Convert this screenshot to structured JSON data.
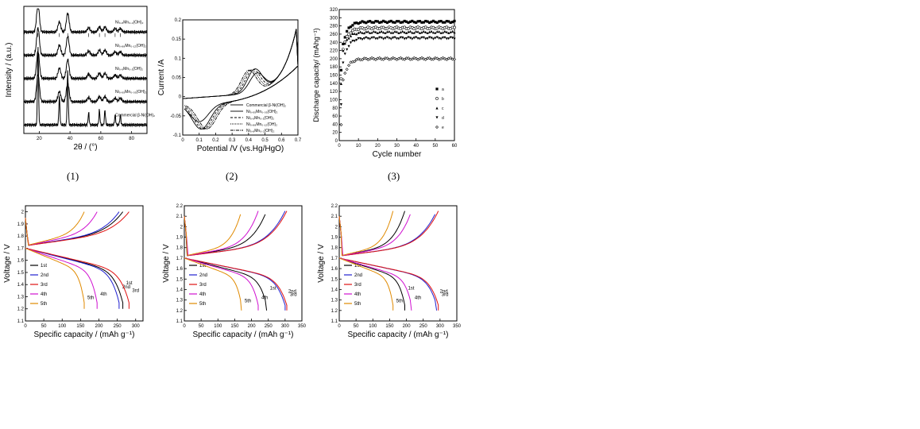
{
  "captions": [
    "(1)",
    "(2)",
    "(3)"
  ],
  "chart_data": [
    {
      "type": "line",
      "id": "xrd",
      "xlabel": "2θ / (°)",
      "ylabel": "Intensity / (a.u.)",
      "xlim": [
        10,
        90
      ],
      "xticks": [
        20,
        40,
        60,
        80
      ],
      "series": [
        {
          "name": "Ni₀.₈Mn₀.₂(OH)₂",
          "offset": 4
        },
        {
          "name": "Ni₀.₈₈Mn₀.₁₂(OH)₂",
          "offset": 3
        },
        {
          "name": "Ni₀.₉Mn₀.₁(OH)₂",
          "offset": 2
        },
        {
          "name": "Ni₀.₉₅Mn₀.₀₅(OH)₂",
          "offset": 1
        },
        {
          "name": "Commercial β-Ni(OH)₂",
          "offset": 0
        }
      ],
      "peaks_2theta": [
        19.2,
        33.1,
        38.5,
        52.1,
        59.1,
        62.7,
        69.3,
        72.7
      ]
    },
    {
      "type": "line",
      "id": "cv",
      "xlabel": "Potential /V (vs.Hg/HgO)",
      "ylabel": "Current /A",
      "xlim": [
        0.0,
        0.7
      ],
      "ylim": [
        -0.1,
        0.2
      ],
      "xticks": [
        0.0,
        0.1,
        0.2,
        0.3,
        0.4,
        0.5,
        0.6,
        0.7
      ],
      "yticks": [
        -0.1,
        -0.05,
        0.0,
        0.05,
        0.1,
        0.15,
        0.2
      ],
      "series": [
        {
          "name": "Commercial β-Ni(OH)₂",
          "dash": ""
        },
        {
          "name": "Ni₀.₉₅Mn₀.₀₅(OH)₂",
          "dash": ""
        },
        {
          "name": "Ni₀.₉Mn₀.₁(OH)₂",
          "dash": "3,2"
        },
        {
          "name": "Ni₀.₈₈Mn₀.₁₂(OH)₂",
          "dash": "1,1"
        },
        {
          "name": "Ni₀.₈Mn₀.₂(OH)₂",
          "dash": "4,1,1,1"
        }
      ]
    },
    {
      "type": "scatter",
      "id": "cycle",
      "xlabel": "Cycle number",
      "ylabel": "Discharge capacity/ (mAhg⁻¹)",
      "xlim": [
        0,
        60
      ],
      "ylim": [
        0,
        320
      ],
      "xticks": [
        0,
        10,
        20,
        30,
        40,
        50,
        60
      ],
      "yticks": [
        0,
        20,
        40,
        60,
        80,
        100,
        120,
        140,
        160,
        180,
        200,
        220,
        240,
        260,
        280,
        300,
        320
      ],
      "series": [
        {
          "name": "a",
          "marker": "square",
          "plateau": 290,
          "start": 210
        },
        {
          "name": "b",
          "marker": "circle",
          "plateau": 275,
          "start": 200
        },
        {
          "name": "c",
          "marker": "triangle-up",
          "plateau": 265,
          "start": 200
        },
        {
          "name": "d",
          "marker": "triangle-down",
          "plateau": 250,
          "start": 160
        },
        {
          "name": "e",
          "marker": "diamond",
          "plateau": 200,
          "start": 120
        }
      ]
    },
    {
      "type": "line",
      "id": "gcd1",
      "xlabel": "Specific capacity / (mAh g⁻¹)",
      "ylabel": "Voltage / V",
      "xlim": [
        0,
        320
      ],
      "ylim": [
        1.1,
        2.05
      ],
      "xticks": [
        0,
        50,
        100,
        150,
        200,
        250,
        300
      ],
      "yticks": [
        1.1,
        1.2,
        1.3,
        1.4,
        1.5,
        1.6,
        1.7,
        1.8,
        1.9,
        2.0
      ],
      "series": [
        {
          "name": "1st",
          "color": "#000000",
          "discharge_end": 265
        },
        {
          "name": "2nd",
          "color": "#1f1fd0",
          "discharge_end": 255
        },
        {
          "name": "3rd",
          "color": "#e01010",
          "discharge_end": 282
        },
        {
          "name": "4th",
          "color": "#d010d0",
          "discharge_end": 195
        },
        {
          "name": "5th",
          "color": "#e08a00",
          "discharge_end": 160
        }
      ]
    },
    {
      "type": "line",
      "id": "gcd2",
      "xlabel": "Specific capacity / (mAh g⁻¹)",
      "ylabel": "Voltage / V",
      "xlim": [
        0,
        350
      ],
      "ylim": [
        1.1,
        2.2
      ],
      "xticks": [
        0,
        50,
        100,
        150,
        200,
        250,
        300,
        350
      ],
      "yticks": [
        1.1,
        1.2,
        1.3,
        1.4,
        1.5,
        1.6,
        1.7,
        1.8,
        1.9,
        2.0,
        2.1,
        2.2
      ],
      "series": [
        {
          "name": "1st",
          "color": "#000000",
          "discharge_end": 245
        },
        {
          "name": "2nd",
          "color": "#1f1fd0",
          "discharge_end": 300
        },
        {
          "name": "3rd",
          "color": "#e01010",
          "discharge_end": 305
        },
        {
          "name": "4th",
          "color": "#d010d0",
          "discharge_end": 220
        },
        {
          "name": "5th",
          "color": "#e08a00",
          "discharge_end": 170
        }
      ]
    },
    {
      "type": "line",
      "id": "gcd3",
      "xlabel": "Specific capacity / (mAh g⁻¹)",
      "ylabel": "Voltage / V",
      "xlim": [
        0,
        350
      ],
      "ylim": [
        1.1,
        2.2
      ],
      "xticks": [
        0,
        50,
        100,
        150,
        200,
        250,
        300,
        350
      ],
      "yticks": [
        1.1,
        1.2,
        1.3,
        1.4,
        1.5,
        1.6,
        1.7,
        1.8,
        1.9,
        2.0,
        2.1,
        2.2
      ],
      "series": [
        {
          "name": "1st",
          "color": "#000000",
          "discharge_end": 195
        },
        {
          "name": "2nd",
          "color": "#1f1fd0",
          "discharge_end": 290
        },
        {
          "name": "3rd",
          "color": "#e01010",
          "discharge_end": 295
        },
        {
          "name": "4th",
          "color": "#d010d0",
          "discharge_end": 215
        },
        {
          "name": "5th",
          "color": "#e08a00",
          "discharge_end": 160
        }
      ]
    }
  ]
}
